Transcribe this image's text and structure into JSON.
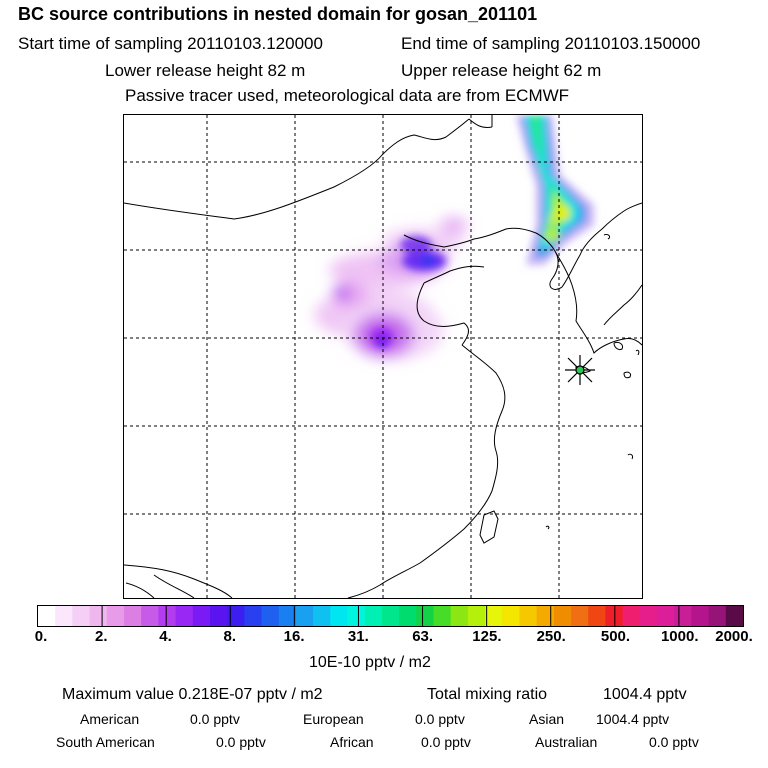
{
  "header": {
    "title": "BC  source contributions in nested domain for gosan_201101",
    "start_time": "Start time of sampling 20110103.120000",
    "end_time": "End time of sampling 20110103.150000",
    "lower_release": "Lower release height   82 m",
    "upper_release": "Upper release height   62 m",
    "tracer_note": "Passive tracer used, meteorological data are from ECMWF"
  },
  "colorbar": {
    "colors": [
      "#ffffff",
      "#fbe6fb",
      "#f6cff6",
      "#f0b6f0",
      "#e79be9",
      "#dc7ee4",
      "#c85ae8",
      "#b43cf0",
      "#9a28f5",
      "#7a1af5",
      "#5a14f0",
      "#3c1ef0",
      "#2840f0",
      "#2060f0",
      "#1a7ff0",
      "#1aa0f0",
      "#10c0f0",
      "#00e6f0",
      "#00f5e0",
      "#00f0b4",
      "#00e68c",
      "#00dc6e",
      "#14d246",
      "#46dc28",
      "#8ce614",
      "#b4f00a",
      "#e6f50a",
      "#f5e600",
      "#f5c800",
      "#f5aa00",
      "#f08c00",
      "#f06e14",
      "#f04614",
      "#f01e28",
      "#f01e6e",
      "#e61e8c",
      "#dc1e9a",
      "#c81e96",
      "#b4148c",
      "#961478",
      "#5a0a46"
    ],
    "ticks": [
      "0.",
      "2.",
      "4.",
      "8.",
      "16.",
      "31.",
      "63.",
      "125.",
      "250.",
      "500.",
      "1000.",
      "2000."
    ],
    "unit": "10E-10 pptv / m2"
  },
  "stats": {
    "max_label": "Maximum value  0.218E-07 pptv / m2",
    "total_label": "Total mixing ratio",
    "total_value": "1004.4 pptv",
    "regions": [
      {
        "name": "American",
        "value": "0.0 pptv"
      },
      {
        "name": "European",
        "value": "0.0 pptv"
      },
      {
        "name": "Asian",
        "value": "1004.4 pptv"
      },
      {
        "name": "South American",
        "value": "0.0 pptv"
      },
      {
        "name": "African",
        "value": "0.0 pptv"
      },
      {
        "name": "Australian",
        "value": "0.0 pptv"
      }
    ]
  },
  "map": {
    "receptor": "gosan",
    "plume_colors": {
      "light_violet": "#f0c8f5",
      "violet": "#d28cf0",
      "purple": "#a050f0",
      "blue": "#3c3cf0",
      "cyan": "#1ee6f0",
      "green": "#28e678",
      "yellow": "#e6f00a"
    }
  }
}
